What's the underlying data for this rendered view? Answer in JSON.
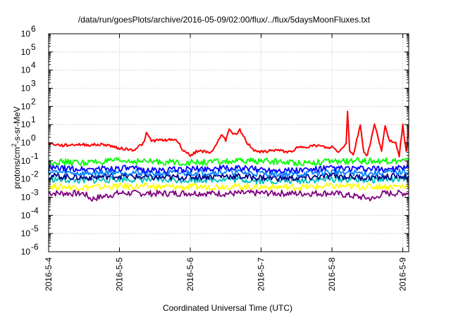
{
  "chart_data": {
    "type": "line",
    "title": "/data/run/goesPlots/archive/2016-05-09/02:00/flux/../flux/5daysMoonFluxes.txt",
    "xlabel": "Coordinated Universal Time (UTC)",
    "ylabel": "protons/cm²-s-sr-MeV",
    "yscale": "log",
    "ylim": [
      1e-06,
      1000000.0
    ],
    "xlim": [
      "2016-05-04 00:00",
      "2016-05-09 02:00"
    ],
    "grid": true,
    "yticks": [
      {
        "value": 1e-06,
        "base": "10",
        "exp": "-6"
      },
      {
        "value": 1e-05,
        "base": "10",
        "exp": "-5"
      },
      {
        "value": 0.0001,
        "base": "10",
        "exp": "-4"
      },
      {
        "value": 0.001,
        "base": "10",
        "exp": "-3"
      },
      {
        "value": 0.01,
        "base": "10",
        "exp": "-2"
      },
      {
        "value": 0.1,
        "base": "10",
        "exp": "-1"
      },
      {
        "value": 1,
        "base": "10",
        "exp": "0"
      },
      {
        "value": 10.0,
        "base": "10",
        "exp": "1"
      },
      {
        "value": 100.0,
        "base": "10",
        "exp": "2"
      },
      {
        "value": 1000.0,
        "base": "10",
        "exp": "3"
      },
      {
        "value": 10000.0,
        "base": "10",
        "exp": "4"
      },
      {
        "value": 100000.0,
        "base": "10",
        "exp": "5"
      },
      {
        "value": 1000000.0,
        "base": "10",
        "exp": "6"
      }
    ],
    "xticks": [
      "2016-5-4",
      "2016-5-5",
      "2016-5-6",
      "2016-5-7",
      "2016-5-8",
      "2016-5-9"
    ],
    "series": [
      {
        "color": "#ff0000",
        "x": [
          0,
          0.2,
          0.4,
          0.6,
          0.8,
          1.0,
          1.2,
          1.35,
          1.38,
          1.45,
          1.6,
          1.8,
          1.9,
          2.0,
          2.1,
          2.3,
          2.45,
          2.5,
          2.55,
          2.65,
          2.7,
          2.8,
          2.9,
          3.0,
          3.2,
          3.4,
          3.5,
          3.6,
          3.8,
          3.95,
          4.0,
          4.1,
          4.2,
          4.22,
          4.25,
          4.3,
          4.4,
          4.45,
          4.5,
          4.6,
          4.7,
          4.75,
          4.8,
          4.9,
          4.95,
          5.0,
          5.05,
          5.08
        ],
        "y": [
          0.9,
          0.7,
          0.8,
          0.75,
          0.8,
          0.5,
          0.4,
          1.0,
          3.5,
          1.3,
          1.4,
          1.5,
          0.4,
          0.2,
          0.35,
          0.3,
          3.0,
          1.4,
          5.0,
          2.5,
          5.0,
          1.0,
          0.4,
          0.3,
          0.4,
          0.3,
          0.5,
          0.6,
          0.7,
          0.5,
          0.6,
          0.3,
          1.0,
          50,
          0.4,
          0.2,
          10,
          0.3,
          0.2,
          10,
          0.4,
          8,
          1.5,
          1.0,
          0.2,
          10,
          0.3,
          8
        ]
      },
      {
        "color": "#00ff00",
        "x": [
          0,
          0.5,
          1.0,
          1.5,
          2.0,
          2.5,
          3.0,
          3.5,
          4.0,
          4.5,
          5.08
        ],
        "y": [
          0.09,
          0.08,
          0.1,
          0.09,
          0.08,
          0.09,
          0.1,
          0.08,
          0.09,
          0.1,
          0.1
        ]
      },
      {
        "color": "#0000ff",
        "x": [
          0,
          0.5,
          1.0,
          1.5,
          2.0,
          2.5,
          3.0,
          3.5,
          4.0,
          4.5,
          5.08
        ],
        "y": [
          0.04,
          0.035,
          0.04,
          0.03,
          0.035,
          0.04,
          0.035,
          0.03,
          0.04,
          0.035,
          0.04
        ]
      },
      {
        "color": "#0080ff",
        "x": [
          0,
          0.5,
          1.0,
          1.5,
          2.0,
          2.5,
          3.0,
          3.5,
          4.0,
          4.5,
          5.08
        ],
        "y": [
          0.025,
          0.02,
          0.025,
          0.02,
          0.022,
          0.025,
          0.02,
          0.018,
          0.025,
          0.02,
          0.025
        ]
      },
      {
        "color": "#00008b",
        "x": [
          0,
          0.5,
          1.0,
          1.5,
          2.0,
          2.5,
          3.0,
          3.5,
          4.0,
          4.5,
          5.08
        ],
        "y": [
          0.015,
          0.012,
          0.015,
          0.012,
          0.013,
          0.015,
          0.012,
          0.011,
          0.015,
          0.012,
          0.015
        ]
      },
      {
        "color": "#00c0c0",
        "x": [
          0,
          0.5,
          1.0,
          1.5,
          2.0,
          2.5,
          3.0,
          3.5,
          4.0,
          4.5,
          5.08
        ],
        "y": [
          0.01,
          0.008,
          0.01,
          0.009,
          0.009,
          0.01,
          0.008,
          0.008,
          0.01,
          0.009,
          0.01
        ]
      },
      {
        "color": "#ffff00",
        "x": [
          0,
          0.5,
          1.0,
          1.5,
          2.0,
          2.5,
          3.0,
          3.5,
          4.0,
          4.5,
          5.08
        ],
        "y": [
          0.004,
          0.0035,
          0.004,
          0.0038,
          0.0036,
          0.004,
          0.0037,
          0.0035,
          0.004,
          0.0038,
          0.004
        ]
      },
      {
        "color": "#800080",
        "x": [
          0,
          0.5,
          0.6,
          1.0,
          1.5,
          2.0,
          2.5,
          3.0,
          3.5,
          4.0,
          4.6,
          4.7,
          5.08
        ],
        "y": [
          0.0017,
          0.0016,
          0.0008,
          0.0017,
          0.0016,
          0.0017,
          0.0016,
          0.0017,
          0.0016,
          0.0017,
          0.0008,
          0.0016,
          0.0017
        ]
      }
    ]
  }
}
